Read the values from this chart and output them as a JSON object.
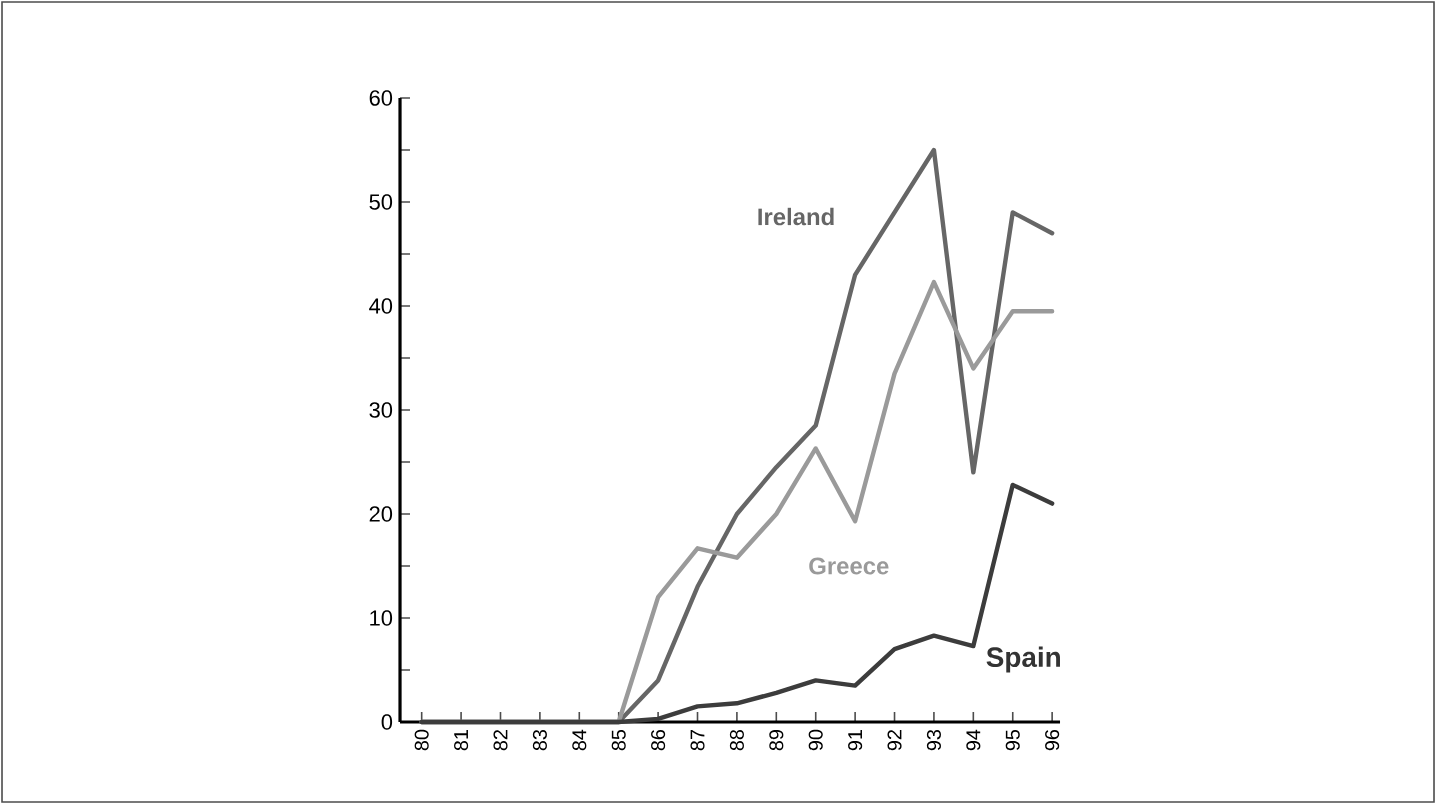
{
  "chart_data": {
    "type": "line",
    "categories": [
      "80",
      "81",
      "82",
      "83",
      "84",
      "85",
      "86",
      "87",
      "88",
      "89",
      "90",
      "91",
      "92",
      "93",
      "94",
      "95",
      "96"
    ],
    "series": [
      {
        "name": "Ireland",
        "color": "#666666",
        "values": [
          0,
          0,
          0,
          0,
          0,
          0,
          4,
          13,
          20,
          24.5,
          28.5,
          43,
          49,
          55,
          24,
          49,
          47
        ]
      },
      {
        "name": "Greece",
        "color": "#9a9a9a",
        "values": [
          0,
          0,
          0,
          0,
          0,
          0,
          12,
          16.7,
          15.8,
          20,
          26.3,
          19.3,
          33.5,
          42.3,
          34,
          39.5,
          39.5
        ]
      },
      {
        "name": "Spain",
        "color": "#3c3c3c",
        "values": [
          0,
          0,
          0,
          0,
          0,
          0,
          0.3,
          1.5,
          1.8,
          2.8,
          4,
          3.5,
          7,
          8.3,
          7.3,
          22.8,
          21
        ]
      }
    ],
    "ylim": [
      0,
      60
    ],
    "yticks": [
      0,
      {
        "value": 5,
        "label": null
      },
      10,
      {
        "value": 15,
        "label": null
      },
      20,
      {
        "value": 25,
        "label": null
      },
      30,
      {
        "value": 35,
        "label": null
      },
      40,
      {
        "value": 45,
        "label": null
      },
      50,
      {
        "value": 55,
        "label": null
      },
      60
    ],
    "grid": false,
    "legend": false,
    "marker": "none",
    "line_style": "solid"
  }
}
